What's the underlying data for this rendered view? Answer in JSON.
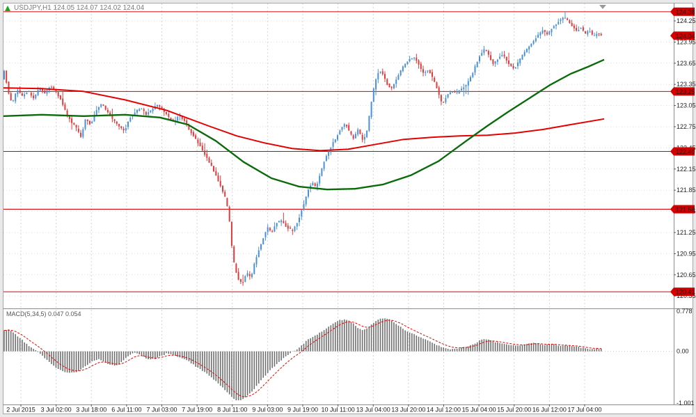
{
  "window": {
    "title": "USDJPY,H1 124.05 124.07 124.02 124.04",
    "symbol": "USDJPY",
    "timeframe": "H1"
  },
  "chart_data": {
    "type": "candlestick",
    "symbol": "USDJPY",
    "timeframe": "H1",
    "quote": {
      "open": 124.05,
      "high": 124.07,
      "low": 124.02,
      "close": 124.04
    },
    "current_price": 124.04,
    "style": {
      "up_color": "#4a90d9",
      "down_color": "#e23a3a",
      "ma_fast_color": "#e60000",
      "ma_slow_color": "#0b6b0b",
      "level_line_color": "#d40000",
      "hist_color": "#6f6f6f",
      "signal_color": "#e60000"
    },
    "y_axis": {
      "ticks": [
        124.25,
        123.95,
        123.65,
        123.35,
        123.05,
        122.75,
        122.45,
        122.15,
        121.85,
        121.55,
        121.25,
        120.95,
        120.65,
        120.35
      ]
    },
    "x_axis": {
      "labels": [
        "2 Jul 2015",
        "3 Jul 02:00",
        "3 Jul 18:00",
        "6 Jul 11:00",
        "7 Jul 03:00",
        "7 Jul 19:00",
        "8 Jul 11:00",
        "9 Jul 03:00",
        "9 Jul 19:00",
        "10 Jul 11:00",
        "13 Jul 04:00",
        "13 Jul 20:00",
        "14 Jul 12:00",
        "15 Jul 04:00",
        "15 Jul 20:00",
        "16 Jul 12:00",
        "17 Jul 04:00"
      ]
    },
    "horizontal_lines": [
      124.38,
      123.25,
      122.4,
      121.58,
      120.41
    ],
    "price_path": [
      [
        6,
        123.42
      ],
      [
        8,
        123.58
      ],
      [
        12,
        123.3
      ],
      [
        16,
        123.14
      ],
      [
        20,
        123.1
      ],
      [
        26,
        123.28
      ],
      [
        34,
        123.18
      ],
      [
        42,
        123.26
      ],
      [
        50,
        123.15
      ],
      [
        58,
        123.3
      ],
      [
        66,
        123.22
      ],
      [
        74,
        123.33
      ],
      [
        82,
        123.24
      ],
      [
        90,
        123.12
      ],
      [
        96,
        122.95
      ],
      [
        104,
        122.82
      ],
      [
        112,
        122.72
      ],
      [
        118,
        122.6
      ],
      [
        124,
        122.85
      ],
      [
        132,
        122.78
      ],
      [
        140,
        122.98
      ],
      [
        148,
        123.08
      ],
      [
        156,
        122.95
      ],
      [
        164,
        122.85
      ],
      [
        172,
        122.76
      ],
      [
        180,
        122.68
      ],
      [
        188,
        122.88
      ],
      [
        196,
        122.96
      ],
      [
        204,
        123.02
      ],
      [
        212,
        122.92
      ],
      [
        220,
        123.0
      ],
      [
        228,
        123.06
      ],
      [
        236,
        122.98
      ],
      [
        244,
        122.88
      ],
      [
        252,
        122.8
      ],
      [
        258,
        122.92
      ],
      [
        266,
        122.84
      ],
      [
        274,
        122.7
      ],
      [
        282,
        122.58
      ],
      [
        290,
        122.46
      ],
      [
        298,
        122.32
      ],
      [
        306,
        122.18
      ],
      [
        312,
        122.06
      ],
      [
        318,
        121.92
      ],
      [
        324,
        121.78
      ],
      [
        330,
        121.55
      ],
      [
        334,
        121.1
      ],
      [
        338,
        120.8
      ],
      [
        344,
        120.58
      ],
      [
        350,
        120.52
      ],
      [
        356,
        120.68
      ],
      [
        362,
        120.6
      ],
      [
        368,
        120.85
      ],
      [
        374,
        121.02
      ],
      [
        380,
        121.18
      ],
      [
        386,
        121.32
      ],
      [
        392,
        121.24
      ],
      [
        398,
        121.38
      ],
      [
        406,
        121.42
      ],
      [
        414,
        121.32
      ],
      [
        422,
        121.28
      ],
      [
        430,
        121.42
      ],
      [
        438,
        121.65
      ],
      [
        444,
        121.85
      ],
      [
        450,
        121.96
      ],
      [
        456,
        121.88
      ],
      [
        462,
        122.1
      ],
      [
        468,
        122.28
      ],
      [
        474,
        122.4
      ],
      [
        480,
        122.52
      ],
      [
        486,
        122.62
      ],
      [
        492,
        122.74
      ],
      [
        498,
        122.8
      ],
      [
        504,
        122.66
      ],
      [
        510,
        122.58
      ],
      [
        516,
        122.72
      ],
      [
        522,
        122.56
      ],
      [
        528,
        122.64
      ],
      [
        534,
        123.02
      ],
      [
        540,
        123.38
      ],
      [
        546,
        123.55
      ],
      [
        552,
        123.5
      ],
      [
        558,
        123.35
      ],
      [
        564,
        123.28
      ],
      [
        570,
        123.4
      ],
      [
        576,
        123.52
      ],
      [
        582,
        123.62
      ],
      [
        590,
        123.7
      ],
      [
        597,
        123.74
      ],
      [
        604,
        123.62
      ],
      [
        610,
        123.5
      ],
      [
        617,
        123.56
      ],
      [
        624,
        123.42
      ],
      [
        630,
        123.28
      ],
      [
        637,
        123.05
      ],
      [
        643,
        123.18
      ],
      [
        650,
        123.26
      ],
      [
        657,
        123.22
      ],
      [
        664,
        123.28
      ],
      [
        671,
        123.34
      ],
      [
        678,
        123.45
      ],
      [
        685,
        123.62
      ],
      [
        692,
        123.78
      ],
      [
        698,
        123.85
      ],
      [
        704,
        123.76
      ],
      [
        710,
        123.64
      ],
      [
        716,
        123.7
      ],
      [
        722,
        123.78
      ],
      [
        728,
        123.72
      ],
      [
        734,
        123.62
      ],
      [
        740,
        123.56
      ],
      [
        746,
        123.66
      ],
      [
        752,
        123.76
      ],
      [
        758,
        123.84
      ],
      [
        764,
        123.92
      ],
      [
        770,
        123.98
      ],
      [
        776,
        124.06
      ],
      [
        782,
        124.12
      ],
      [
        788,
        124.05
      ],
      [
        794,
        124.14
      ],
      [
        800,
        124.2
      ],
      [
        806,
        124.26
      ],
      [
        812,
        124.3
      ],
      [
        818,
        124.24
      ],
      [
        824,
        124.18
      ],
      [
        830,
        124.1
      ],
      [
        836,
        124.16
      ],
      [
        842,
        124.06
      ],
      [
        848,
        124.12
      ],
      [
        854,
        124.02
      ],
      [
        860,
        124.08
      ],
      [
        864,
        124.04
      ]
    ],
    "ma_fast_red": [
      [
        5,
        123.3
      ],
      [
        60,
        123.29
      ],
      [
        120,
        123.25
      ],
      [
        180,
        123.13
      ],
      [
        240,
        122.98
      ],
      [
        300,
        122.76
      ],
      [
        340,
        122.62
      ],
      [
        380,
        122.52
      ],
      [
        420,
        122.44
      ],
      [
        460,
        122.41
      ],
      [
        500,
        122.43
      ],
      [
        540,
        122.5
      ],
      [
        580,
        122.57
      ],
      [
        620,
        122.6
      ],
      [
        660,
        122.62
      ],
      [
        700,
        122.63
      ],
      [
        740,
        122.66
      ],
      [
        780,
        122.71
      ],
      [
        820,
        122.78
      ],
      [
        868,
        122.86
      ]
    ],
    "ma_slow_green": [
      [
        5,
        122.9
      ],
      [
        60,
        122.92
      ],
      [
        120,
        122.9
      ],
      [
        180,
        122.92
      ],
      [
        230,
        122.88
      ],
      [
        270,
        122.78
      ],
      [
        310,
        122.55
      ],
      [
        350,
        122.25
      ],
      [
        390,
        122.02
      ],
      [
        430,
        121.9
      ],
      [
        470,
        121.86
      ],
      [
        510,
        121.87
      ],
      [
        550,
        121.93
      ],
      [
        590,
        122.06
      ],
      [
        630,
        122.26
      ],
      [
        670,
        122.55
      ],
      [
        700,
        122.76
      ],
      [
        730,
        122.96
      ],
      [
        760,
        123.15
      ],
      [
        790,
        123.34
      ],
      [
        820,
        123.5
      ],
      [
        845,
        123.6
      ],
      [
        868,
        123.7
      ]
    ],
    "macd": {
      "label": "MACD(5,34,5) 0.047 0.054",
      "name": "MACD",
      "params": "5,34,5",
      "value_main": "0.047",
      "value_signal": "0.054",
      "scale_max": 0.778,
      "scale_min": -1.001,
      "zero_label": "0.00",
      "path": [
        [
          6,
          0.4
        ],
        [
          14,
          0.42
        ],
        [
          22,
          0.34
        ],
        [
          30,
          0.24
        ],
        [
          40,
          0.12
        ],
        [
          50,
          0.03
        ],
        [
          58,
          -0.05
        ],
        [
          66,
          -0.15
        ],
        [
          74,
          -0.25
        ],
        [
          82,
          -0.33
        ],
        [
          90,
          -0.38
        ],
        [
          100,
          -0.42
        ],
        [
          110,
          -0.4
        ],
        [
          118,
          -0.33
        ],
        [
          126,
          -0.25
        ],
        [
          134,
          -0.18
        ],
        [
          142,
          -0.15
        ],
        [
          150,
          -0.2
        ],
        [
          158,
          -0.26
        ],
        [
          166,
          -0.28
        ],
        [
          174,
          -0.22
        ],
        [
          182,
          -0.12
        ],
        [
          188,
          -0.05
        ],
        [
          194,
          -0.02
        ],
        [
          200,
          -0.06
        ],
        [
          208,
          -0.12
        ],
        [
          216,
          -0.16
        ],
        [
          224,
          -0.14
        ],
        [
          232,
          -0.08
        ],
        [
          240,
          -0.04
        ],
        [
          248,
          -0.06
        ],
        [
          256,
          -0.1
        ],
        [
          264,
          -0.14
        ],
        [
          272,
          -0.2
        ],
        [
          280,
          -0.28
        ],
        [
          288,
          -0.35
        ],
        [
          296,
          -0.42
        ],
        [
          304,
          -0.5
        ],
        [
          312,
          -0.6
        ],
        [
          320,
          -0.7
        ],
        [
          328,
          -0.82
        ],
        [
          336,
          -0.92
        ],
        [
          344,
          -0.96
        ],
        [
          352,
          -0.9
        ],
        [
          360,
          -0.8
        ],
        [
          368,
          -0.68
        ],
        [
          376,
          -0.55
        ],
        [
          384,
          -0.42
        ],
        [
          392,
          -0.32
        ],
        [
          400,
          -0.22
        ],
        [
          408,
          -0.12
        ],
        [
          416,
          -0.05
        ],
        [
          424,
          0.02
        ],
        [
          432,
          0.1
        ],
        [
          440,
          0.2
        ],
        [
          448,
          0.28
        ],
        [
          456,
          0.33
        ],
        [
          464,
          0.4
        ],
        [
          472,
          0.48
        ],
        [
          480,
          0.55
        ],
        [
          488,
          0.6
        ],
        [
          496,
          0.63
        ],
        [
          504,
          0.58
        ],
        [
          512,
          0.48
        ],
        [
          520,
          0.4
        ],
        [
          528,
          0.45
        ],
        [
          536,
          0.55
        ],
        [
          544,
          0.62
        ],
        [
          552,
          0.65
        ],
        [
          560,
          0.62
        ],
        [
          568,
          0.55
        ],
        [
          576,
          0.47
        ],
        [
          584,
          0.4
        ],
        [
          592,
          0.35
        ],
        [
          600,
          0.3
        ],
        [
          608,
          0.25
        ],
        [
          616,
          0.2
        ],
        [
          624,
          0.15
        ],
        [
          632,
          0.1
        ],
        [
          640,
          0.06
        ],
        [
          648,
          0.04
        ],
        [
          656,
          0.05
        ],
        [
          664,
          0.08
        ],
        [
          672,
          0.1
        ],
        [
          680,
          0.14
        ],
        [
          688,
          0.2
        ],
        [
          696,
          0.24
        ],
        [
          704,
          0.22
        ],
        [
          712,
          0.18
        ],
        [
          720,
          0.15
        ],
        [
          728,
          0.14
        ],
        [
          736,
          0.12
        ],
        [
          744,
          0.1
        ],
        [
          752,
          0.12
        ],
        [
          760,
          0.15
        ],
        [
          768,
          0.16
        ],
        [
          776,
          0.14
        ],
        [
          784,
          0.12
        ],
        [
          792,
          0.14
        ],
        [
          800,
          0.12
        ],
        [
          808,
          0.1
        ],
        [
          816,
          0.12
        ],
        [
          824,
          0.1
        ],
        [
          832,
          0.08
        ],
        [
          840,
          0.06
        ],
        [
          848,
          0.05
        ],
        [
          856,
          0.05
        ],
        [
          864,
          0.05
        ]
      ]
    }
  }
}
